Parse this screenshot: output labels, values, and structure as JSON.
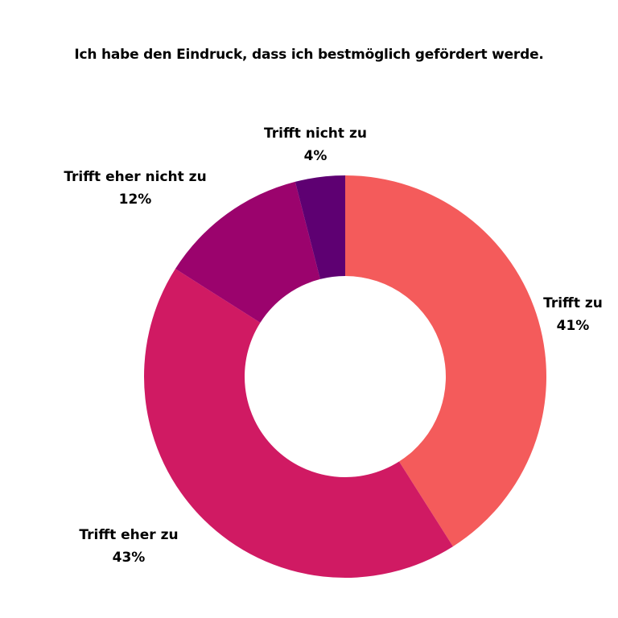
{
  "chart_data": {
    "type": "pie",
    "variant": "donut",
    "title": "Ich habe den Eindruck, dass ich bestmöglich gefördert werde.",
    "legend": "none",
    "slices": [
      {
        "label": "Trifft zu",
        "value": 41,
        "value_label": "41%",
        "color": "#F45B5B"
      },
      {
        "label": "Trifft eher zu",
        "value": 43,
        "value_label": "43%",
        "color": "#D01A63"
      },
      {
        "label": "Trifft eher nicht zu",
        "value": 12,
        "value_label": "12%",
        "color": "#9B036D"
      },
      {
        "label": "Trifft nicht zu",
        "value": 4,
        "value_label": "4%",
        "color": "#5E0072"
      }
    ]
  }
}
